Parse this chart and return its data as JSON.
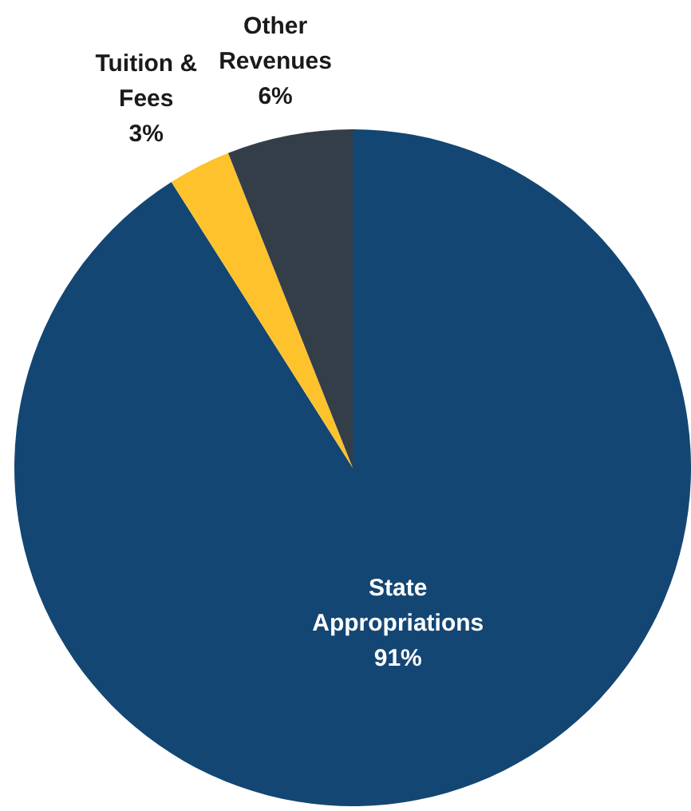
{
  "chart_data": {
    "type": "pie",
    "categories": [
      "State Appropriations",
      "Tuition & Fees",
      "Other Revenues"
    ],
    "values": [
      91,
      3,
      6
    ],
    "colors": [
      "#134673",
      "#fec22d",
      "#343e48"
    ],
    "value_labels": [
      "91%",
      "3%",
      "6%"
    ],
    "legend": false
  }
}
